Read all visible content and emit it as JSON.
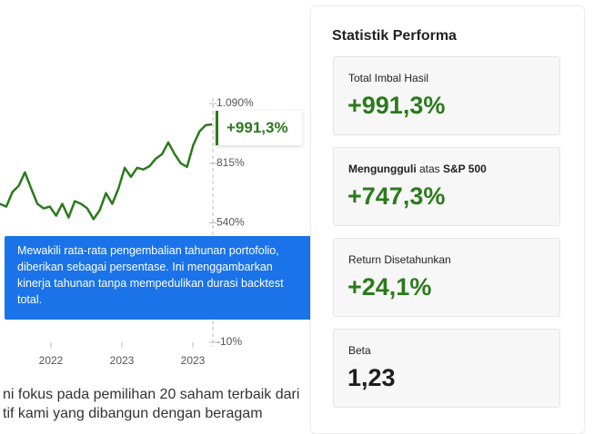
{
  "chart": {
    "type": "line",
    "color": "#2b7a1c",
    "ylim": [
      -10,
      1090
    ],
    "yticks": [
      {
        "value": 1090,
        "label": "1.090%"
      },
      {
        "value": 815,
        "label": "815%"
      },
      {
        "value": 540,
        "label": "540%"
      },
      {
        "value": -10,
        "label": "-10%"
      }
    ],
    "categories": [
      "2022",
      "2023",
      "2023"
    ],
    "values": [
      628,
      615,
      682,
      711,
      773,
      698,
      628,
      607,
      615,
      573,
      628,
      565,
      640,
      628,
      607,
      557,
      598,
      677,
      628,
      698,
      794,
      752,
      794,
      786,
      802,
      836,
      857,
      911,
      857,
      815,
      798,
      898,
      961,
      990,
      994
    ],
    "callout": "+991,3%"
  },
  "tooltip": {
    "lines": [
      "Mewakili rata-rata pengembalian tahunan portofolio,",
      "diberikan sebagai persentase. Ini menggambarkan",
      "kinerja tahunan tanpa mempedulikan durasi backtest",
      "total."
    ]
  },
  "body_text": [
    "ni fokus pada pemilihan 20 saham terbaik dari",
    "tif kami yang dibangun dengan beragam"
  ],
  "panel": {
    "title": "Statistik Performa",
    "cards": [
      {
        "label": "Total Imbal Hasil",
        "value": "+991,3%"
      },
      {
        "label_parts": [
          "Mengungguli",
          " atas ",
          "S&P 500"
        ],
        "value": "+747,3%"
      },
      {
        "label": "Return Disetahunkan",
        "value": "+24,1%"
      },
      {
        "label": "Beta",
        "value": "1,23"
      }
    ]
  }
}
